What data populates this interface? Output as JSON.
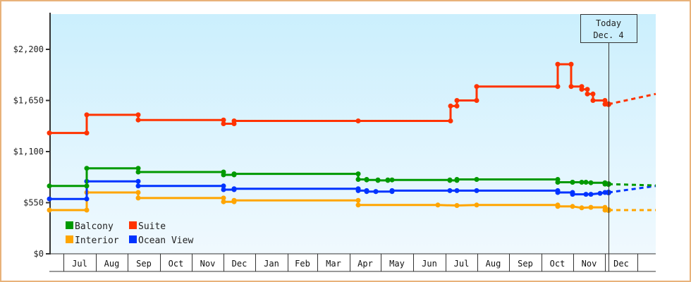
{
  "chart_data": {
    "type": "line",
    "title": "",
    "xlabel": "",
    "ylabel": "",
    "ylim": [
      0,
      2600
    ],
    "y_ticks": [
      {
        "value": 0,
        "label": "$0"
      },
      {
        "value": 550,
        "label": "$550"
      },
      {
        "value": 1100,
        "label": "$1,100"
      },
      {
        "value": 1650,
        "label": "$1,650"
      },
      {
        "value": 2200,
        "label": "$2,200"
      }
    ],
    "x_months": [
      "Jul",
      "Aug",
      "Sep",
      "Oct",
      "Nov",
      "Dec",
      "Jan",
      "Feb",
      "Mar",
      "Apr",
      "May",
      "Jun",
      "Jul",
      "Aug",
      "Sep",
      "Oct",
      "Nov",
      "Dec"
    ],
    "today_marker": {
      "line1": "Today",
      "line2": "Dec. 4"
    },
    "legend": [
      {
        "name": "Balcony",
        "color": "#009900"
      },
      {
        "name": "Suite",
        "color": "#ff3300"
      },
      {
        "name": "Interior",
        "color": "#ffa500"
      },
      {
        "name": "Ocean View",
        "color": "#0033ff"
      }
    ],
    "series": [
      {
        "name": "Suite",
        "color": "#ff3300",
        "steps": [
          [
            70,
            1300
          ],
          [
            123,
            1300
          ],
          [
            123,
            1495
          ],
          [
            196,
            1495
          ],
          [
            196,
            1440
          ],
          [
            317,
            1440
          ],
          [
            317,
            1400
          ],
          [
            332,
            1400
          ],
          [
            332,
            1430
          ],
          [
            508,
            1430
          ],
          [
            639,
            1430
          ],
          [
            639,
            1590
          ],
          [
            648,
            1590
          ],
          [
            648,
            1650
          ],
          [
            676,
            1650
          ],
          [
            676,
            1800
          ],
          [
            791,
            1800
          ],
          [
            791,
            2040
          ],
          [
            810,
            2040
          ],
          [
            810,
            1800
          ],
          [
            825,
            1800
          ],
          [
            825,
            1770
          ],
          [
            833,
            1770
          ],
          [
            833,
            1720
          ],
          [
            841,
            1720
          ],
          [
            841,
            1650
          ],
          [
            858,
            1650
          ],
          [
            858,
            1610
          ],
          [
            863,
            1610
          ]
        ],
        "forecast": [
          [
            863,
            1610
          ],
          [
            930,
            1720
          ]
        ]
      },
      {
        "name": "Balcony",
        "color": "#009900",
        "steps": [
          [
            70,
            730
          ],
          [
            123,
            730
          ],
          [
            123,
            920
          ],
          [
            196,
            920
          ],
          [
            196,
            880
          ],
          [
            317,
            880
          ],
          [
            317,
            850
          ],
          [
            332,
            850
          ],
          [
            332,
            860
          ],
          [
            508,
            860
          ],
          [
            508,
            800
          ],
          [
            520,
            800
          ],
          [
            520,
            795
          ],
          [
            536,
            795
          ],
          [
            536,
            790
          ],
          [
            550,
            790
          ],
          [
            550,
            795
          ],
          [
            556,
            795
          ],
          [
            638,
            795
          ],
          [
            638,
            790
          ],
          [
            648,
            790
          ],
          [
            648,
            800
          ],
          [
            676,
            800
          ],
          [
            791,
            800
          ],
          [
            791,
            770
          ],
          [
            812,
            770
          ],
          [
            812,
            770
          ],
          [
            825,
            770
          ],
          [
            831,
            770
          ],
          [
            838,
            765
          ],
          [
            858,
            765
          ],
          [
            858,
            750
          ],
          [
            863,
            750
          ]
        ],
        "forecast": [
          [
            863,
            750
          ],
          [
            930,
            735
          ]
        ]
      },
      {
        "name": "Ocean View",
        "color": "#0033ff",
        "steps": [
          [
            70,
            590
          ],
          [
            123,
            590
          ],
          [
            123,
            780
          ],
          [
            196,
            780
          ],
          [
            196,
            730
          ],
          [
            317,
            730
          ],
          [
            317,
            690
          ],
          [
            332,
            690
          ],
          [
            332,
            700
          ],
          [
            508,
            700
          ],
          [
            508,
            680
          ],
          [
            520,
            680
          ],
          [
            520,
            670
          ],
          [
            533,
            670
          ],
          [
            533,
            670
          ],
          [
            556,
            670
          ],
          [
            556,
            680
          ],
          [
            638,
            680
          ],
          [
            648,
            680
          ],
          [
            676,
            680
          ],
          [
            791,
            680
          ],
          [
            791,
            660
          ],
          [
            812,
            660
          ],
          [
            812,
            640
          ],
          [
            831,
            640
          ],
          [
            838,
            640
          ],
          [
            851,
            650
          ],
          [
            858,
            660
          ],
          [
            863,
            660
          ]
        ],
        "forecast": [
          [
            863,
            660
          ],
          [
            930,
            730
          ]
        ]
      },
      {
        "name": "Interior",
        "color": "#ffa500",
        "steps": [
          [
            70,
            470
          ],
          [
            123,
            470
          ],
          [
            123,
            660
          ],
          [
            196,
            660
          ],
          [
            196,
            600
          ],
          [
            317,
            600
          ],
          [
            317,
            560
          ],
          [
            332,
            560
          ],
          [
            332,
            575
          ],
          [
            508,
            575
          ],
          [
            508,
            525
          ],
          [
            621,
            525
          ],
          [
            648,
            520
          ],
          [
            676,
            525
          ],
          [
            791,
            525
          ],
          [
            791,
            510
          ],
          [
            812,
            510
          ],
          [
            825,
            495
          ],
          [
            838,
            500
          ],
          [
            858,
            500
          ],
          [
            858,
            470
          ],
          [
            863,
            470
          ]
        ],
        "forecast": [
          [
            863,
            470
          ],
          [
            930,
            470
          ]
        ]
      }
    ]
  }
}
